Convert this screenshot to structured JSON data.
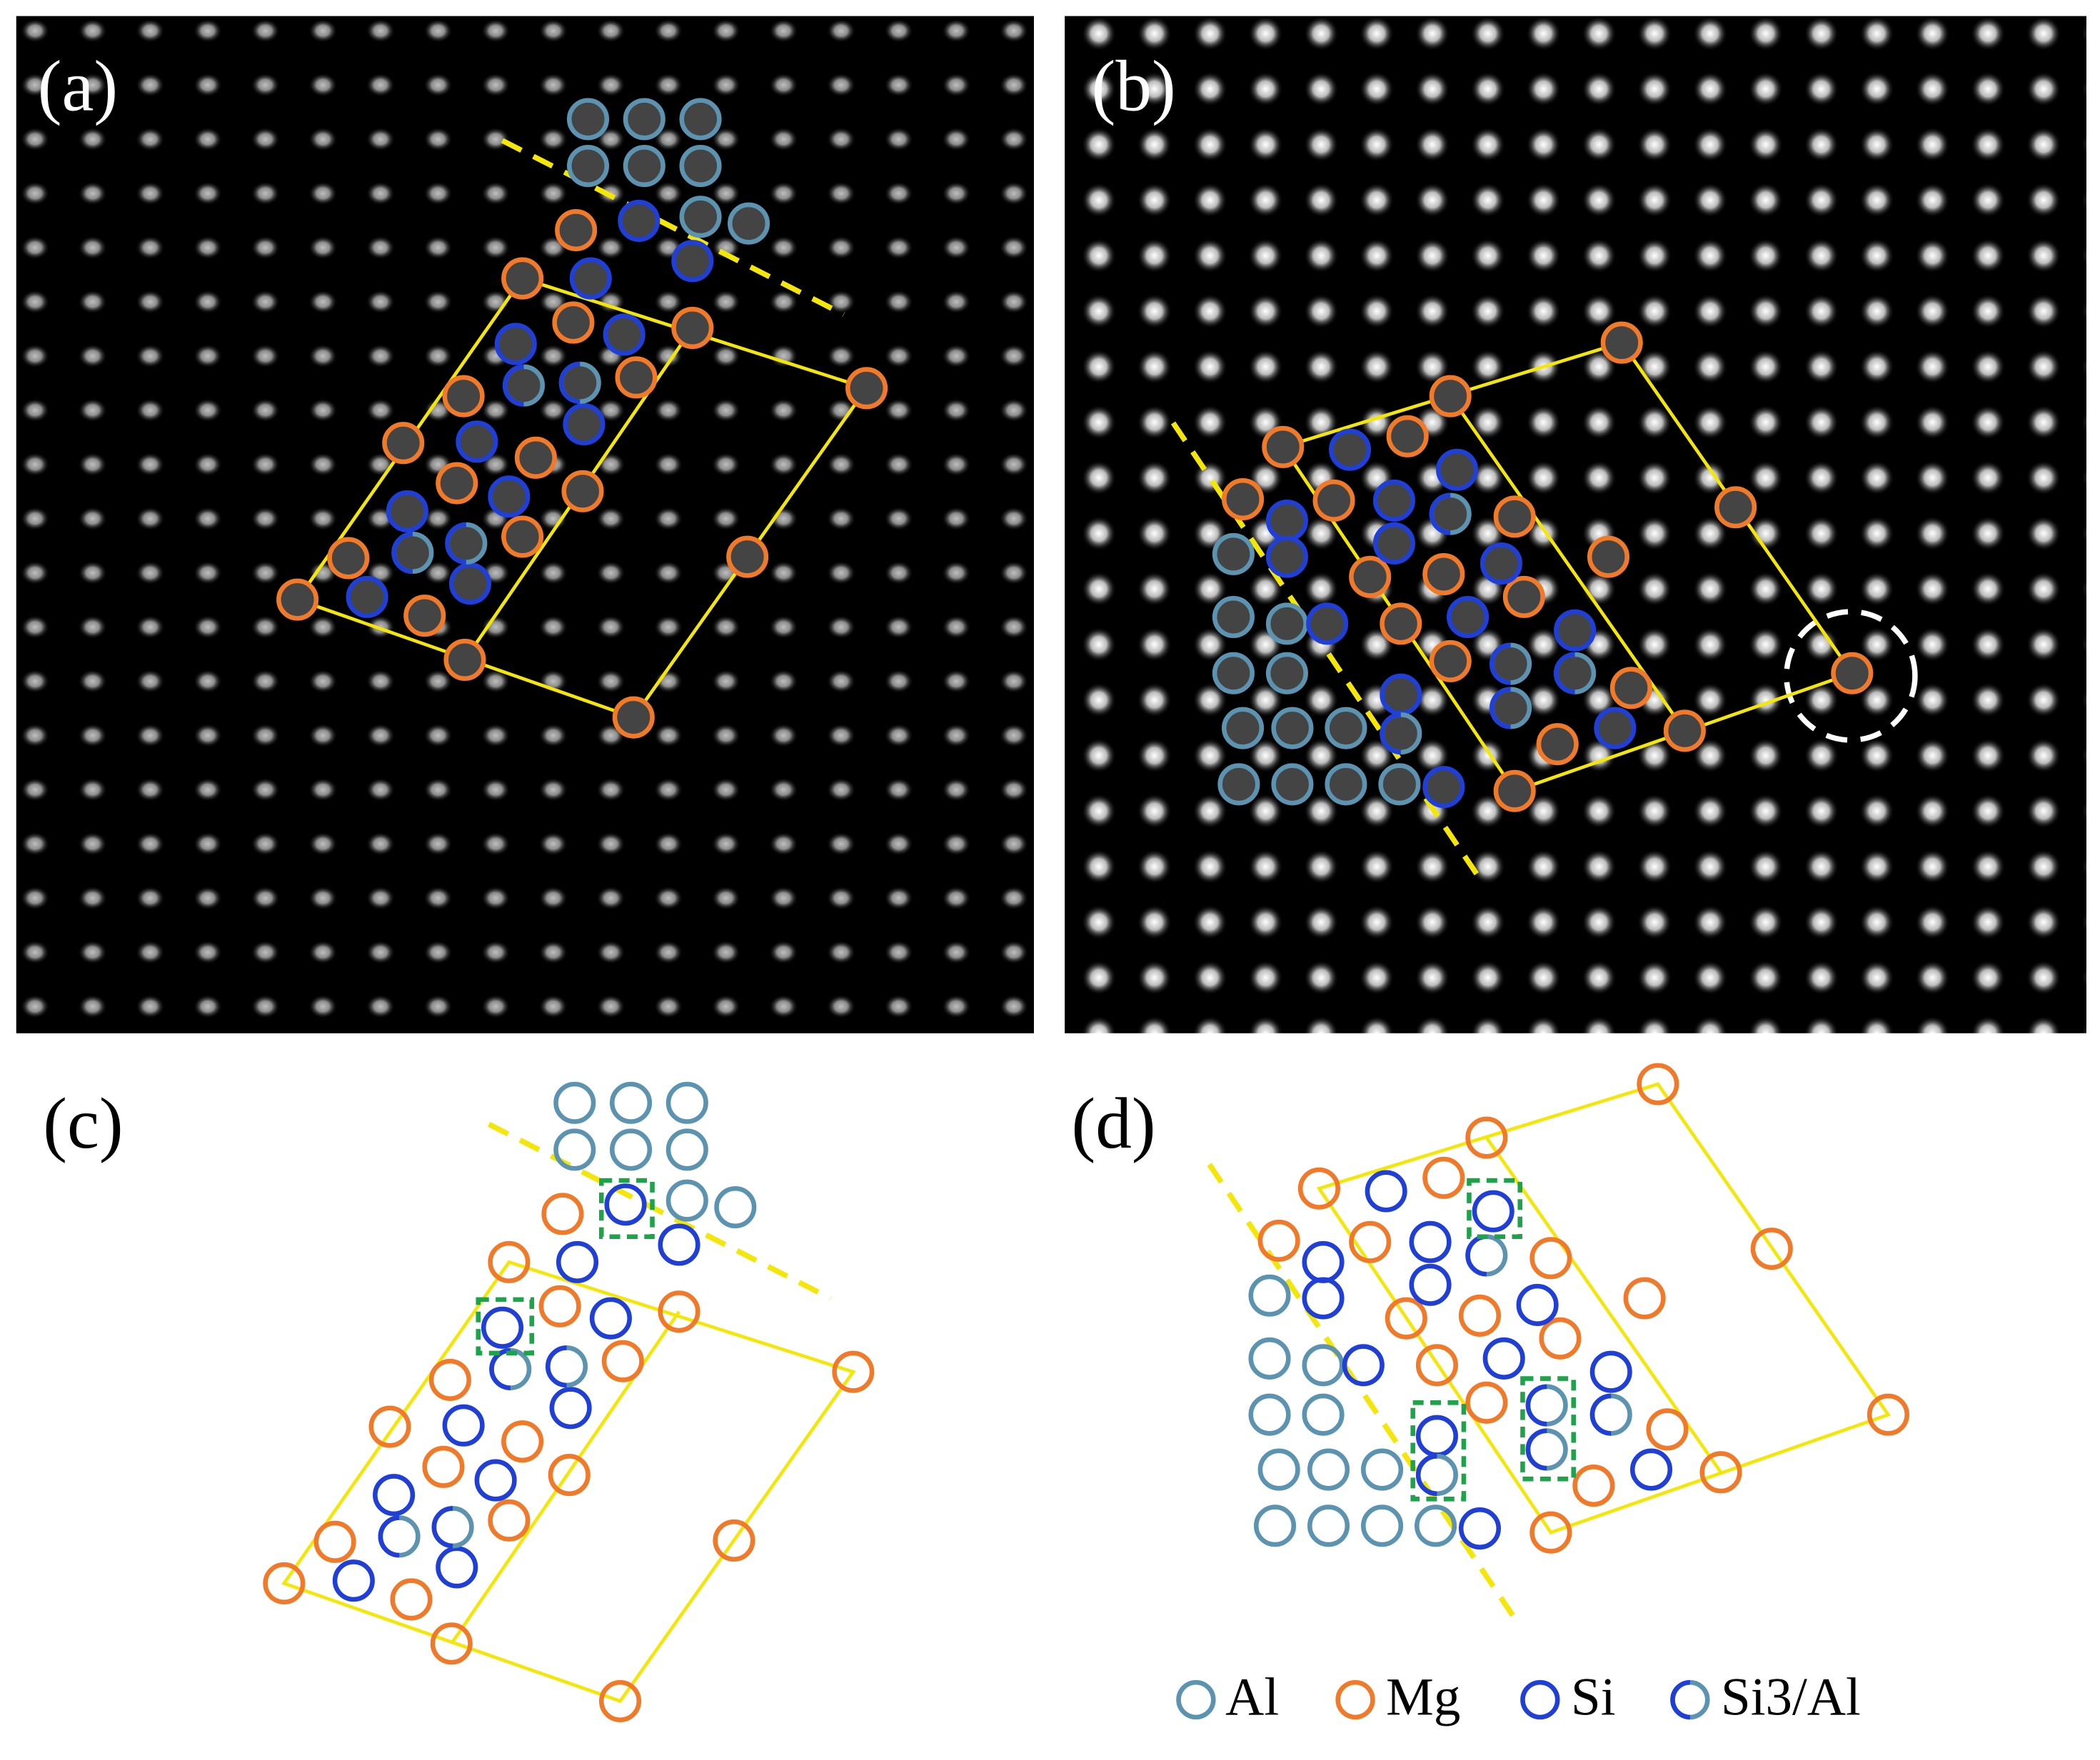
{
  "panels": [
    {
      "label": "(a)"
    },
    {
      "label": "(b)"
    },
    {
      "label": "(c)"
    },
    {
      "label": "(d)"
    }
  ],
  "legend": [
    {
      "label": "Al"
    },
    {
      "label": "Mg"
    },
    {
      "label": "Si"
    },
    {
      "label": "Si3/Al"
    }
  ]
}
